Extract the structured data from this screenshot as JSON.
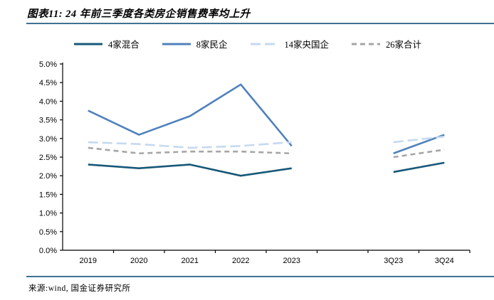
{
  "header": {
    "title": "图表11: 24 年前三季度各类房企销售费率均上升"
  },
  "footer": {
    "source": "来源:wind, 国金证券研究所"
  },
  "colors": {
    "rule_blue": "#3E7193",
    "axis": "#000000"
  },
  "chart_data": {
    "type": "line",
    "title": "",
    "xlabel": "",
    "ylabel": "",
    "categories": [
      "2019",
      "2020",
      "2021",
      "2022",
      "2023",
      "",
      "3Q23",
      "3Q24"
    ],
    "series": [
      {
        "name": "4家混合",
        "color": "#175878",
        "dash": "",
        "values": [
          2.3,
          2.2,
          2.3,
          2.0,
          2.2,
          null,
          2.1,
          2.35
        ]
      },
      {
        "name": "8家民企",
        "color": "#4F81BD",
        "dash": "",
        "values": [
          3.75,
          3.1,
          3.6,
          4.45,
          2.8,
          null,
          2.6,
          3.1
        ]
      },
      {
        "name": "14家央国企",
        "color": "#C5D9F1",
        "dash": "14 6",
        "values": [
          2.9,
          2.85,
          2.75,
          2.8,
          2.9,
          null,
          2.9,
          3.05
        ]
      },
      {
        "name": "26家合计",
        "color": "#A6A6A6",
        "dash": "7 5",
        "values": [
          2.75,
          2.6,
          2.65,
          2.65,
          2.6,
          null,
          2.5,
          2.7
        ]
      }
    ],
    "ylim": [
      0,
      5
    ],
    "ytick_step": 0.5,
    "ytick_format": "0.0%",
    "grid": false,
    "legend_position": "top"
  }
}
